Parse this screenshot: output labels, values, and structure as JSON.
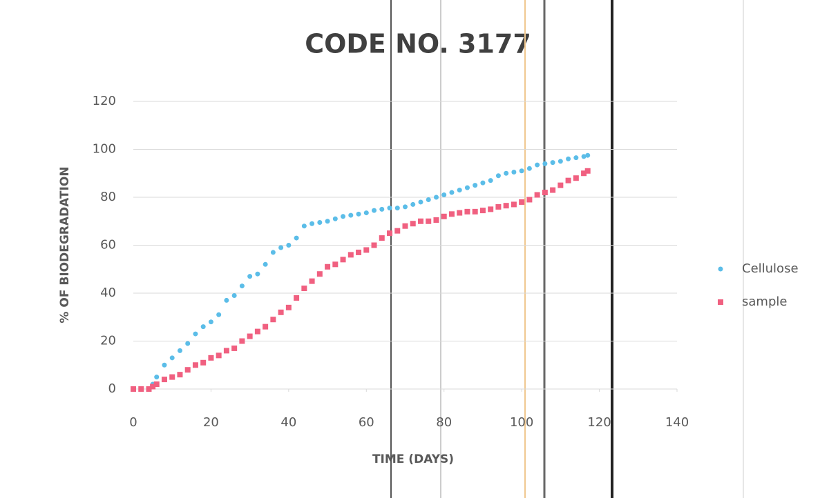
{
  "chart_data": {
    "type": "scatter",
    "title": "CODE NO. 3177",
    "x_label": "TIME (DAYS)",
    "y_label": "% OF BIODEGRADATION",
    "x": [
      0,
      2,
      4,
      5,
      6,
      8,
      10,
      12,
      14,
      16,
      18,
      20,
      22,
      24,
      26,
      28,
      30,
      32,
      34,
      36,
      38,
      40,
      42,
      44,
      46,
      48,
      50,
      52,
      54,
      56,
      58,
      60,
      62,
      64,
      66,
      68,
      70,
      72,
      74,
      76,
      78,
      80,
      82,
      84,
      86,
      88,
      90,
      92,
      94,
      96,
      98,
      100,
      102,
      104,
      106,
      108,
      110,
      112,
      114,
      116,
      117
    ],
    "series": [
      {
        "name": "Cellulose",
        "color": "#5bbde8",
        "marker": "circle",
        "values": [
          0,
          0,
          0,
          2,
          5,
          10,
          13,
          16,
          19,
          23,
          26,
          28,
          31,
          37,
          39,
          43,
          47,
          48,
          52,
          57,
          59,
          60,
          63,
          68,
          69,
          69.5,
          70,
          71,
          72,
          72.5,
          73,
          73.5,
          74.5,
          75,
          75.5,
          75.5,
          76,
          77,
          78,
          79,
          80,
          81,
          82,
          83,
          84,
          85,
          86,
          87,
          89,
          90,
          90.5,
          91,
          92,
          93.5,
          94,
          94.5,
          95,
          96,
          96.5,
          97,
          97.5
        ]
      },
      {
        "name": "sample",
        "color": "#f06080",
        "marker": "square",
        "values": [
          0,
          0,
          0,
          1,
          2,
          4,
          5,
          6,
          8,
          10,
          11,
          13,
          14,
          16,
          17,
          20,
          22,
          24,
          26,
          29,
          32,
          34,
          38,
          42,
          45,
          48,
          51,
          52,
          54,
          56,
          57,
          58,
          60,
          63,
          65,
          66,
          68,
          69,
          70,
          70,
          70.5,
          72,
          73,
          73.5,
          74,
          74,
          74.5,
          75,
          76,
          76.5,
          77,
          78,
          79,
          81,
          82,
          83,
          85,
          87,
          88,
          90,
          91
        ]
      }
    ],
    "xlim": [
      0,
      140
    ],
    "xticks": [
      0,
      20,
      40,
      60,
      80,
      100,
      120,
      140
    ],
    "ylim": [
      0,
      120
    ],
    "yticks": [
      0,
      20,
      40,
      60,
      80,
      100,
      120
    ],
    "grid": true,
    "legend": "right"
  }
}
